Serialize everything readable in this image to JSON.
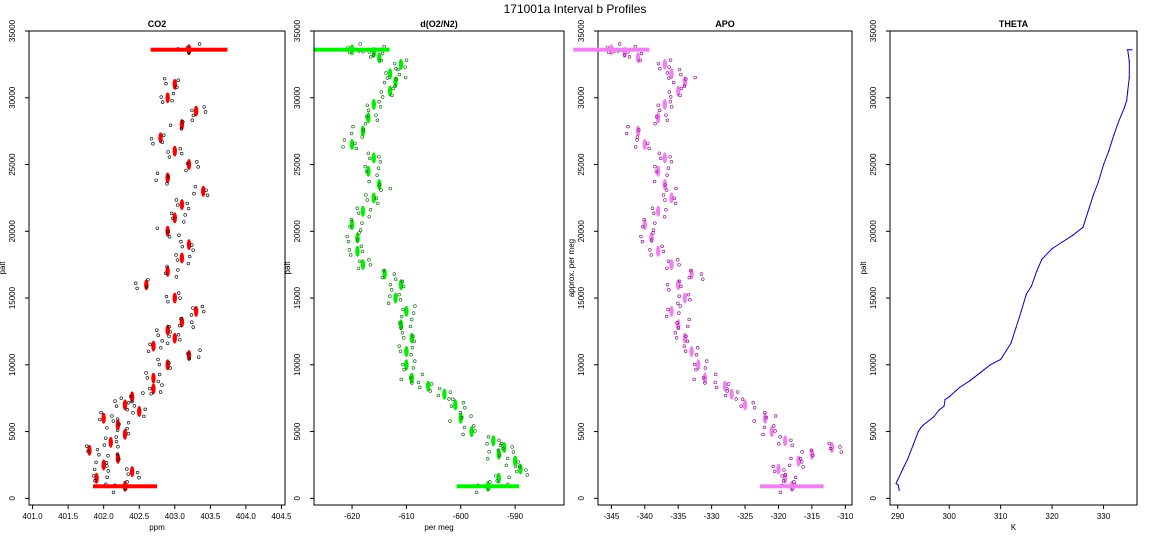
{
  "figure": {
    "title": "171001a   Interval b Profiles"
  },
  "chart_data": [
    {
      "type": "scatter",
      "title": "CO2",
      "xlabel": "ppm",
      "ylabel": "palt",
      "xlim": [
        400.95,
        404.55
      ],
      "ylim": [
        -500,
        35000
      ],
      "xticks": [
        401.0,
        401.5,
        402.0,
        402.5,
        403.0,
        403.5,
        404.0,
        404.5
      ],
      "xtick_labels": [
        "401.0",
        "401.5",
        "402.0",
        "402.5",
        "403.0",
        "403.5",
        "404.0",
        "404.5"
      ],
      "yticks": [
        0,
        5000,
        10000,
        15000,
        20000,
        25000,
        30000,
        35000
      ],
      "ytick_labels": [
        "0",
        "5000",
        "10000",
        "15000",
        "20000",
        "25000",
        "30000",
        "35000"
      ],
      "series": [
        {
          "name": "CO2",
          "color": "#ff0000",
          "x": [
            402.3,
            401.9,
            402.4,
            402.0,
            402.2,
            401.8,
            402.1,
            402.3,
            402.2,
            402.0,
            402.5,
            402.3,
            402.4,
            402.7,
            402.7,
            402.9,
            403.2,
            402.7,
            403.0,
            402.9,
            403.1,
            403.3,
            403.0,
            402.6,
            402.9,
            403.1,
            403.2,
            402.9,
            403.0,
            403.1,
            403.4,
            402.9,
            403.2,
            403.0,
            402.8,
            403.1,
            403.3,
            402.9,
            403.0,
            403.2
          ],
          "y": [
            900,
            1500,
            2000,
            2500,
            3000,
            3600,
            4200,
            4800,
            5500,
            6000,
            6500,
            7000,
            7600,
            8200,
            9000,
            10000,
            10700,
            11400,
            12000,
            12600,
            13200,
            14000,
            15000,
            16000,
            17000,
            18000,
            19000,
            20000,
            21000,
            22000,
            23000,
            24000,
            25000,
            26000,
            27000,
            28000,
            29000,
            30000,
            31000,
            33600
          ]
        }
      ]
    },
    {
      "type": "scatter",
      "title": "d(O2/N2)",
      "xlabel": "per meg",
      "ylabel": "palt",
      "xlim": [
        -627,
        -581
      ],
      "ylim": [
        -500,
        35000
      ],
      "xticks": [
        -620,
        -610,
        -600,
        -590
      ],
      "xtick_labels": [
        "-620",
        "-610",
        "-600",
        "-590"
      ],
      "yticks": [
        0,
        5000,
        10000,
        15000,
        20000,
        25000,
        30000,
        35000
      ],
      "ytick_labels": [
        "0",
        "5000",
        "10000",
        "15000",
        "20000",
        "25000",
        "30000",
        "35000"
      ],
      "series": [
        {
          "name": "d(O2/N2)",
          "color": "#00ee00",
          "x": [
            -595,
            -593,
            -589,
            -590,
            -593,
            -592,
            -594,
            -598,
            -600,
            -601,
            -603,
            -606,
            -609,
            -610,
            -610,
            -609,
            -611,
            -610,
            -612,
            -611,
            -614,
            -618,
            -619,
            -619,
            -620,
            -618,
            -616,
            -615,
            -617,
            -616,
            -620,
            -618,
            -617,
            -616,
            -613,
            -612,
            -613,
            -611,
            -615,
            -616,
            -620
          ],
          "y": [
            900,
            1500,
            2200,
            2800,
            3300,
            3800,
            4300,
            5000,
            6000,
            7000,
            7800,
            8400,
            9000,
            10000,
            11000,
            12000,
            13000,
            14000,
            15000,
            16000,
            16800,
            17500,
            18500,
            19500,
            20500,
            21500,
            22500,
            23500,
            24500,
            25500,
            26500,
            27500,
            28500,
            29500,
            30500,
            31200,
            31800,
            32500,
            33000,
            33400,
            33600
          ]
        }
      ]
    },
    {
      "type": "scatter",
      "title": "APO",
      "xlabel": "",
      "ylabel": "approx. per meg",
      "xlim": [
        -347,
        -309
      ],
      "ylim": [
        -500,
        35000
      ],
      "xticks": [
        -345,
        -340,
        -335,
        -330,
        -325,
        -320,
        -315,
        -310
      ],
      "xtick_labels": [
        "-345",
        "-340",
        "-335",
        "-330",
        "-325",
        "-320",
        "-315",
        "-310"
      ],
      "yticks": [
        0,
        5000,
        10000,
        15000,
        20000,
        25000,
        30000,
        35000
      ],
      "ytick_labels": [
        "0",
        "5000",
        "10000",
        "15000",
        "20000",
        "25000",
        "30000",
        "35000"
      ],
      "series": [
        {
          "name": "APO",
          "color": "#ee82ee",
          "x": [
            -318,
            -319,
            -320,
            -317,
            -315,
            -312,
            -319,
            -321,
            -322,
            -325,
            -327,
            -328,
            -331,
            -332,
            -333,
            -334,
            -335,
            -336,
            -334,
            -335,
            -333,
            -336,
            -338,
            -339,
            -340,
            -338,
            -336,
            -337,
            -338,
            -337,
            -340,
            -341,
            -338,
            -337,
            -335,
            -334,
            -336,
            -337,
            -341,
            -343,
            -345
          ],
          "y": [
            900,
            1500,
            2200,
            2800,
            3300,
            3800,
            4300,
            5000,
            6000,
            7000,
            7800,
            8400,
            9000,
            10000,
            11000,
            12000,
            13000,
            14000,
            15000,
            16000,
            16800,
            17500,
            18500,
            19500,
            20500,
            21500,
            22500,
            23500,
            24500,
            25500,
            26500,
            27500,
            28500,
            29500,
            30500,
            31200,
            31800,
            32500,
            33000,
            33400,
            33600
          ]
        }
      ]
    },
    {
      "type": "line",
      "title": "THETA",
      "xlabel": "K",
      "ylabel": "palt",
      "xlim": [
        288.5,
        336.5
      ],
      "ylim": [
        -500,
        35000
      ],
      "xticks": [
        290,
        300,
        310,
        320,
        330
      ],
      "xtick_labels": [
        "290",
        "300",
        "310",
        "320",
        "330"
      ],
      "yticks": [
        0,
        5000,
        10000,
        15000,
        20000,
        25000,
        30000,
        35000
      ],
      "ytick_labels": [
        "0",
        "5000",
        "10000",
        "15000",
        "20000",
        "25000",
        "30000",
        "35000"
      ],
      "series": [
        {
          "name": "THETA",
          "color": "#0000cc",
          "x": [
            290.3,
            290.1,
            289.7,
            289.9,
            291,
            292,
            293,
            294,
            294.5,
            295,
            297,
            298,
            299,
            299.2,
            300,
            302,
            304,
            306,
            308,
            310,
            312,
            313,
            314,
            315,
            316,
            317,
            318,
            320,
            322,
            324,
            326,
            327,
            328,
            329,
            330,
            331,
            332,
            333,
            334,
            334.5,
            334.7,
            335,
            335,
            334.7,
            335.5
          ],
          "y": [
            600,
            1000,
            1100,
            1300,
            2200,
            3000,
            4000,
            5000,
            5300,
            5500,
            6100,
            6600,
            6900,
            7400,
            7600,
            8300,
            8800,
            9400,
            10000,
            10400,
            11600,
            12800,
            14000,
            15300,
            15900,
            17000,
            17900,
            18700,
            19200,
            19700,
            20300,
            21500,
            22700,
            23700,
            25000,
            26000,
            27200,
            28300,
            29200,
            29800,
            30500,
            31500,
            32700,
            33600,
            33600
          ]
        }
      ]
    }
  ]
}
